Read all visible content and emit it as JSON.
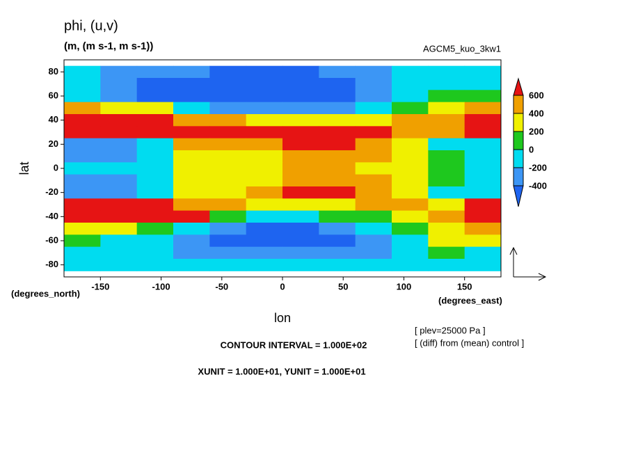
{
  "chart_data": {
    "type": "contour",
    "title": "phi, (u,v)",
    "subtitle": "(m, (m s-1, m s-1))",
    "experiment": "AGCM5_kuo_3kw1",
    "x_label": "lon",
    "y_label": "lat",
    "x_unit": "(degrees_east)",
    "y_unit": "(degrees_north)",
    "notes": [
      "[ plev=25000 Pa ]",
      "[ (diff) from (mean) control ]"
    ],
    "footer": [
      "CONTOUR INTERVAL = 1.000E+02",
      "XUNIT = 1.000E+01, YUNIT = 1.000E+01"
    ],
    "xlim": [
      -180,
      180
    ],
    "ylim": [
      -90,
      90
    ],
    "xticks": [
      -150,
      -100,
      -50,
      0,
      50,
      100,
      150
    ],
    "yticks": [
      -80,
      -60,
      -40,
      -20,
      0,
      20,
      40,
      60,
      80
    ],
    "levels": [
      -400,
      -200,
      0,
      200,
      400,
      600
    ],
    "colors": [
      "#1e64f0",
      "#3c96f5",
      "#00dcf0",
      "#1ec81e",
      "#f0f000",
      "#f0a000",
      "#e61414"
    ],
    "x": [
      -165,
      -135,
      -105,
      -75,
      -45,
      -15,
      15,
      45,
      75,
      105,
      135,
      165
    ],
    "y": [
      80,
      70,
      60,
      50,
      40,
      30,
      20,
      10,
      0,
      -10,
      -20,
      -30,
      -40,
      -50,
      -60,
      -70,
      -80
    ],
    "z": [
      [
        -150,
        -250,
        -300,
        -400,
        -450,
        -450,
        -450,
        -400,
        -300,
        -150,
        -100,
        -150
      ],
      [
        -200,
        -400,
        -500,
        -550,
        -550,
        -550,
        -500,
        -450,
        -350,
        -150,
        -50,
        -150
      ],
      [
        -100,
        -250,
        -450,
        -500,
        -550,
        -550,
        -500,
        -450,
        -300,
        -100,
        50,
        100
      ],
      [
        500,
        350,
        200,
        -100,
        -250,
        -300,
        -300,
        -250,
        -100,
        100,
        300,
        500
      ],
      [
        700,
        700,
        650,
        500,
        400,
        300,
        200,
        200,
        300,
        400,
        500,
        700
      ],
      [
        800,
        800,
        750,
        700,
        650,
        600,
        600,
        650,
        700,
        500,
        400,
        800
      ],
      [
        -300,
        -300,
        -100,
        400,
        500,
        550,
        600,
        650,
        500,
        300,
        -100,
        -200
      ],
      [
        -300,
        -300,
        -200,
        200,
        300,
        350,
        400,
        450,
        400,
        300,
        0,
        -200
      ],
      [
        -200,
        -200,
        -100,
        250,
        300,
        350,
        400,
        400,
        350,
        300,
        0,
        -200
      ],
      [
        -300,
        -300,
        -200,
        200,
        300,
        350,
        400,
        450,
        400,
        300,
        0,
        -200
      ],
      [
        -300,
        -300,
        -100,
        300,
        350,
        450,
        600,
        650,
        500,
        300,
        -100,
        -200
      ],
      [
        700,
        700,
        600,
        500,
        400,
        300,
        200,
        300,
        400,
        400,
        300,
        600
      ],
      [
        800,
        750,
        700,
        600,
        100,
        -100,
        -100,
        0,
        100,
        200,
        400,
        750
      ],
      [
        300,
        200,
        0,
        -200,
        -400,
        -500,
        -500,
        -400,
        -200,
        0,
        300,
        500
      ],
      [
        0,
        -100,
        -200,
        -350,
        -500,
        -550,
        -550,
        -500,
        -300,
        -100,
        200,
        200
      ],
      [
        -100,
        -150,
        -200,
        -250,
        -350,
        -400,
        -400,
        -350,
        -250,
        -100,
        0,
        -100
      ],
      [
        -100,
        -100,
        -100,
        -150,
        -200,
        -200,
        -200,
        -200,
        -150,
        -100,
        -100,
        -100
      ]
    ]
  }
}
